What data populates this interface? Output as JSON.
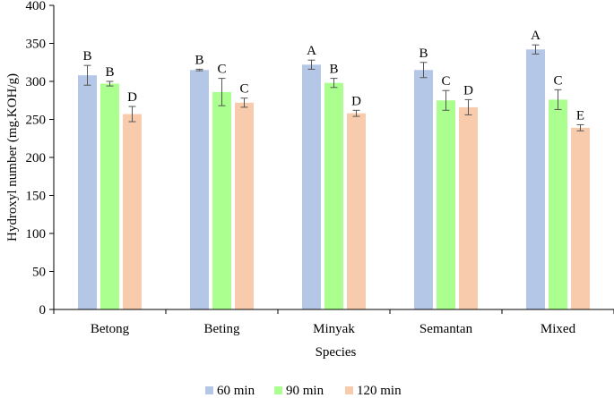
{
  "chart_data": {
    "type": "bar",
    "title": "",
    "xlabel": "Species",
    "ylabel": "Hydroxyl number (mg.KOH/g)",
    "ylim": [
      0,
      400
    ],
    "yticks": [
      0,
      50,
      100,
      150,
      200,
      250,
      300,
      350,
      400
    ],
    "grid": false,
    "legend_position": "bottom",
    "categories": [
      "Betong",
      "Beting",
      "Minyak",
      "Semantan",
      "Mixed"
    ],
    "series": [
      {
        "name": "60 min",
        "color": "#b4c7e7",
        "values": [
          308,
          315,
          322,
          315,
          342
        ],
        "errors": [
          13,
          1,
          6,
          10,
          6
        ],
        "labels": [
          "B",
          "B",
          "A",
          "B",
          "A"
        ]
      },
      {
        "name": "90 min",
        "color": "#aaff8f",
        "values": [
          297,
          286,
          298,
          275,
          276
        ],
        "errors": [
          3,
          18,
          6,
          13,
          13
        ],
        "labels": [
          "B",
          "C",
          "B",
          "C",
          "C"
        ]
      },
      {
        "name": "120 min",
        "color": "#f8cbad",
        "values": [
          257,
          272,
          258,
          266,
          239
        ],
        "errors": [
          10,
          6,
          4,
          10,
          4
        ],
        "labels": [
          "D",
          "C",
          "D",
          "D",
          "E"
        ]
      }
    ]
  }
}
